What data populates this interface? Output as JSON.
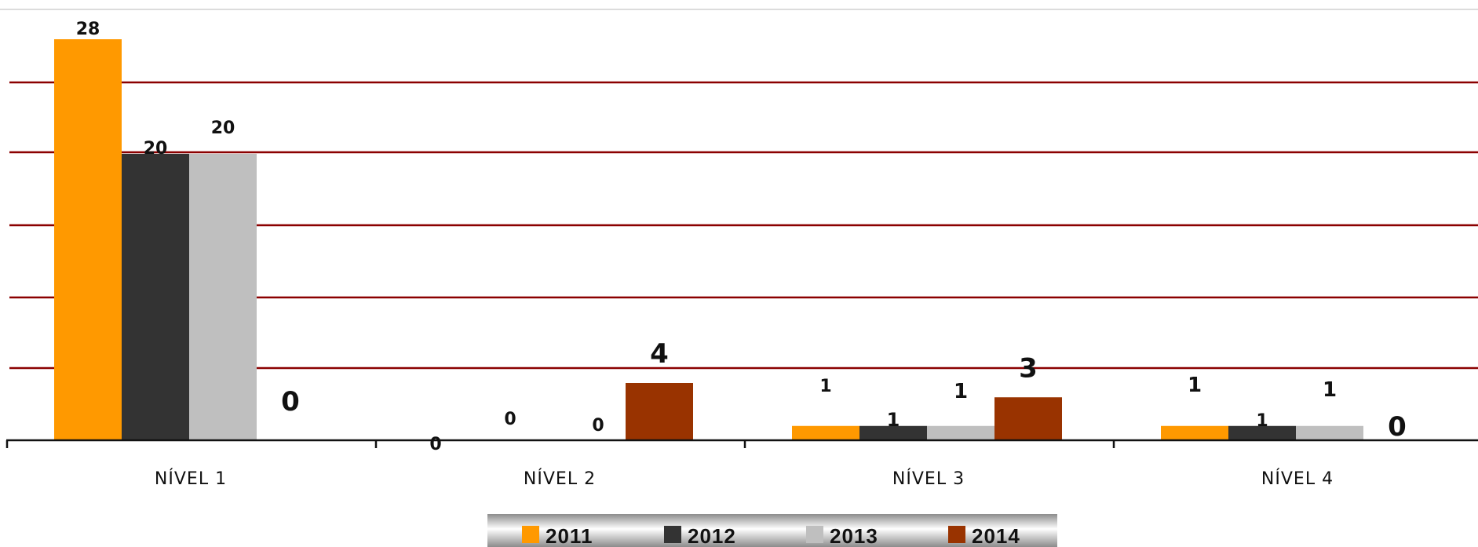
{
  "chart_data": {
    "type": "bar",
    "title": "",
    "xlabel": "",
    "ylabel": "",
    "categories": [
      "NÍVEL 1",
      "NÍVEL 2",
      "NÍVEL 3",
      "NÍVEL 4"
    ],
    "series": [
      {
        "name": "2011",
        "color": "#FF9900",
        "values": [
          28,
          0,
          1,
          1
        ]
      },
      {
        "name": "2012",
        "color": "#333333",
        "values": [
          20,
          0,
          1,
          1
        ]
      },
      {
        "name": "2013",
        "color": "#BFBFBF",
        "values": [
          20,
          0,
          1,
          1
        ]
      },
      {
        "name": "2014",
        "color": "#993300",
        "values": [
          0,
          4,
          3,
          0
        ]
      }
    ],
    "ylim": [
      0,
      30
    ],
    "grid": true,
    "grid_color": "#8B0000",
    "legend": "bottom-center"
  }
}
